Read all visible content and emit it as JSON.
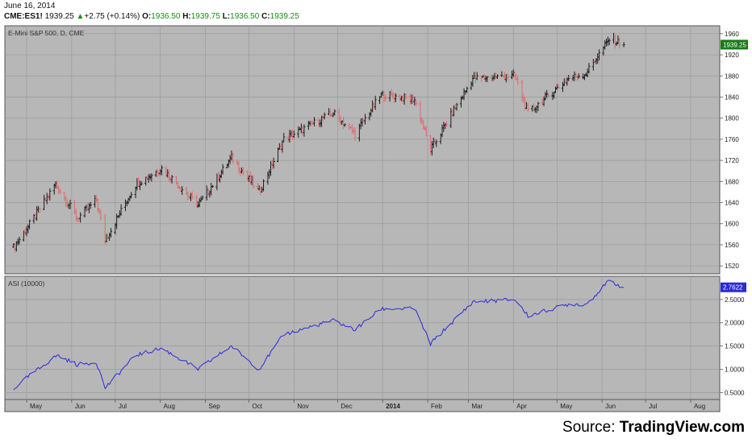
{
  "header": {
    "date": "June 16, 2014",
    "symbol": "CME:ES1!",
    "last": "1939.25",
    "change_arrow": "▲",
    "change": "+2.75 (+0.14%)",
    "open_label": "O:",
    "open": "1936.50",
    "high_label": "H:",
    "high": "1939.75",
    "low_label": "L:",
    "low": "1936.50",
    "close_label": "C:",
    "close": "1939.25"
  },
  "footer": {
    "source_prefix": "Source: ",
    "source_name": "TradingView.com"
  },
  "colors": {
    "background": "#b7b7b7",
    "up_bar": "#1e1e1e",
    "down_bar": "#e06a6a",
    "asi_line": "#2a2ad6",
    "price_tag": "#1a7a1a",
    "asi_tag": "#2a2ad6"
  },
  "chart_data": [
    {
      "type": "ohlc",
      "title": "E-Mini S&P 500, D, CME",
      "x_tick_labels": [
        "May",
        "Jun",
        "Jul",
        "Aug",
        "Sep",
        "Oct",
        "Nov",
        "Dec",
        "2014",
        "Feb",
        "Mar",
        "Apr",
        "May",
        "Jun",
        "Jul",
        "Aug"
      ],
      "y_ticks": [
        1520,
        1560,
        1600,
        1640,
        1680,
        1720,
        1760,
        1800,
        1840,
        1880,
        1920,
        1960
      ],
      "ylim": [
        1505,
        1975
      ],
      "last_value_label": "1939.25",
      "grid": true,
      "anchors": [
        [
          "2013-04-22",
          1555
        ],
        [
          "2013-05-01",
          1590
        ],
        [
          "2013-05-21",
          1675
        ],
        [
          "2013-06-05",
          1610
        ],
        [
          "2013-06-18",
          1645
        ],
        [
          "2013-06-24",
          1568
        ],
        [
          "2013-07-15",
          1675
        ],
        [
          "2013-08-02",
          1705
        ],
        [
          "2013-08-27",
          1635
        ],
        [
          "2013-09-19",
          1725
        ],
        [
          "2013-10-08",
          1660
        ],
        [
          "2013-10-25",
          1760
        ],
        [
          "2013-11-28",
          1810
        ],
        [
          "2013-12-13",
          1770
        ],
        [
          "2013-12-31",
          1845
        ],
        [
          "2014-01-23",
          1835
        ],
        [
          "2014-02-03",
          1740
        ],
        [
          "2014-03-04",
          1875
        ],
        [
          "2014-04-02",
          1880
        ],
        [
          "2014-04-11",
          1810
        ],
        [
          "2014-05-09",
          1875
        ],
        [
          "2014-05-21",
          1885
        ],
        [
          "2014-06-06",
          1950
        ],
        [
          "2014-06-16",
          1939.25
        ]
      ]
    },
    {
      "type": "line",
      "title": "ASI (10000)",
      "series": [
        {
          "name": "ASI (10000)",
          "values": [
            [
              "2013-04-22",
              0.55
            ],
            [
              "2013-04-26",
              0.7
            ],
            [
              "2013-05-22",
              1.3
            ],
            [
              "2013-06-05",
              1.1
            ],
            [
              "2013-06-18",
              1.15
            ],
            [
              "2013-06-24",
              0.6
            ],
            [
              "2013-07-15",
              1.3
            ],
            [
              "2013-08-02",
              1.45
            ],
            [
              "2013-08-27",
              1.0
            ],
            [
              "2013-09-19",
              1.5
            ],
            [
              "2013-10-08",
              1.0
            ],
            [
              "2013-10-25",
              1.75
            ],
            [
              "2013-11-28",
              2.05
            ],
            [
              "2013-12-13",
              1.85
            ],
            [
              "2013-12-31",
              2.3
            ],
            [
              "2014-01-23",
              2.3
            ],
            [
              "2014-02-03",
              1.55
            ],
            [
              "2014-03-04",
              2.45
            ],
            [
              "2014-04-02",
              2.5
            ],
            [
              "2014-04-11",
              2.15
            ],
            [
              "2014-05-09",
              2.4
            ],
            [
              "2014-05-21",
              2.4
            ],
            [
              "2014-06-06",
              2.9
            ],
            [
              "2014-06-16",
              2.7622
            ]
          ]
        }
      ],
      "y_ticks": [
        0.5,
        1.0,
        1.5,
        2.0,
        2.5
      ],
      "y_tick_labels": [
        "0.5000",
        "1.0000",
        "1.5000",
        "2.0000",
        "2.5000"
      ],
      "ylim": [
        0.35,
        3.0
      ],
      "last_value_label": "2.7622",
      "grid": true
    }
  ]
}
